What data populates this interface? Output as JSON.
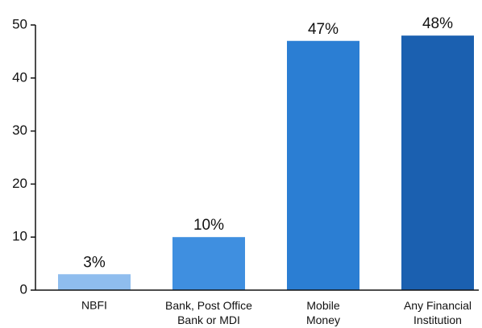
{
  "chart_data": {
    "type": "bar",
    "categories": [
      "NBFI",
      "Bank, Post Office\nBank or MDI",
      "Mobile\nMoney",
      "Any Financial\nInstitution"
    ],
    "values": [
      3,
      10,
      47,
      48
    ],
    "value_labels": [
      "3%",
      "10%",
      "47%",
      "48%"
    ],
    "colors": [
      "#8fbdee",
      "#3f8fe0",
      "#2b7ed3",
      "#1b60b0"
    ],
    "ylim": [
      0,
      50
    ],
    "yticks": [
      0,
      10,
      20,
      30,
      40,
      50
    ],
    "grid": false
  }
}
